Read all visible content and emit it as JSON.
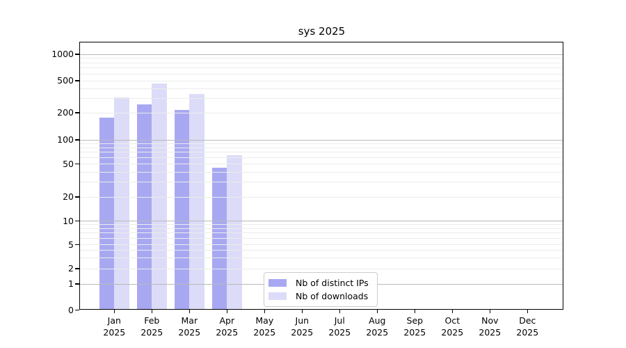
{
  "chart_data": {
    "type": "bar",
    "title": "sys 2025",
    "categories": [
      "Jan",
      "Feb",
      "Mar",
      "Apr",
      "May",
      "Jun",
      "Jul",
      "Aug",
      "Sep",
      "Oct",
      "Nov",
      "Dec"
    ],
    "category_year": "2025",
    "series": [
      {
        "name": "Nb of distinct IPs",
        "color": "#a8a8f2",
        "values": [
          178,
          255,
          215,
          45,
          null,
          null,
          null,
          null,
          null,
          null,
          null,
          null
        ]
      },
      {
        "name": "Nb of downloads",
        "color": "#dcdcf8",
        "values": [
          310,
          460,
          345,
          64,
          null,
          null,
          null,
          null,
          null,
          null,
          null,
          null
        ]
      }
    ],
    "yscale": "symlog",
    "yticks": [
      0,
      1,
      2,
      5,
      10,
      20,
      50,
      100,
      200,
      500,
      1000
    ],
    "ylim": [
      0,
      1400
    ],
    "xlabel": "",
    "ylabel": "",
    "grid": true,
    "legend_position": "lower center",
    "colors": {
      "major_grid": "#b9b9b9",
      "minor_grid": "#ececec",
      "axis": "#000000",
      "background": "#ffffff"
    }
  }
}
